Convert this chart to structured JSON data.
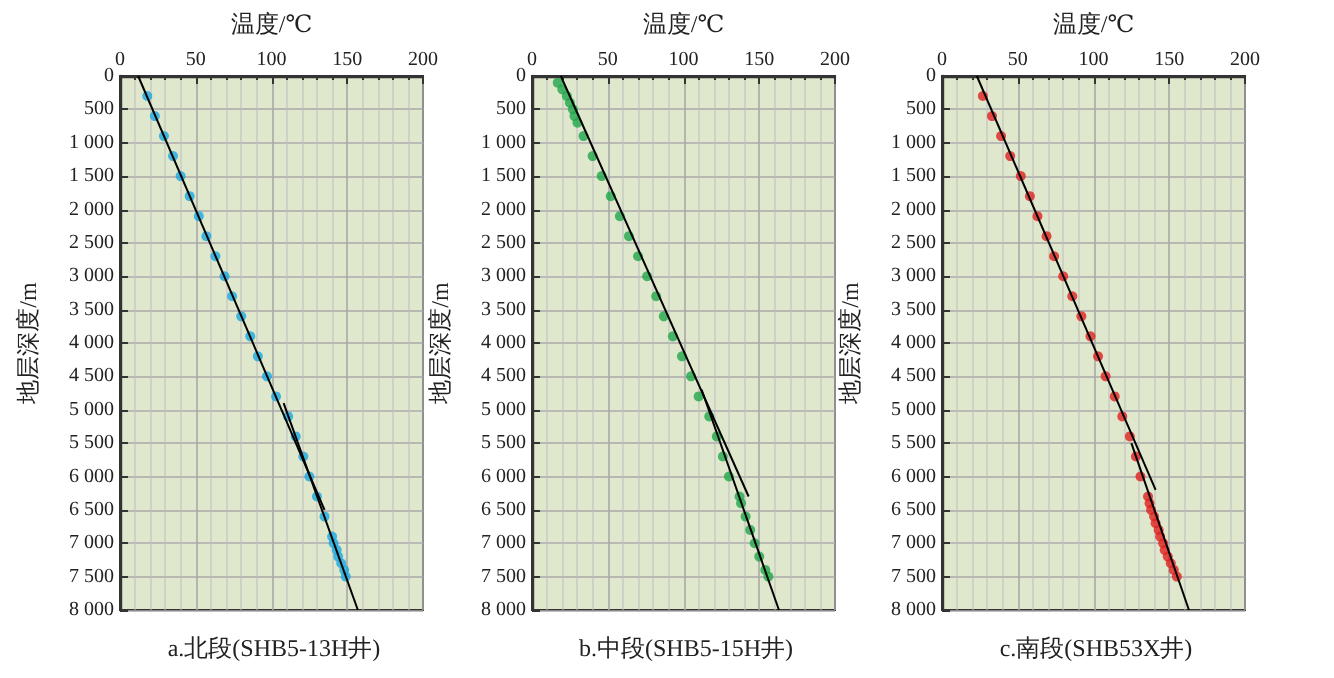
{
  "chart_data": [
    {
      "type": "scatter",
      "title": "a.北段(SHB5-13H井)",
      "xlabel": "温度/℃",
      "ylabel": "地层深度/m",
      "xlim": [
        0,
        200
      ],
      "xticks": [
        0,
        50,
        100,
        150,
        200
      ],
      "ylim": [
        8000,
        0
      ],
      "yticks": [
        {
          "value": 0,
          "label": "0"
        },
        {
          "value": 500,
          "label": "500"
        },
        {
          "value": 1000,
          "label": "1 000"
        },
        {
          "value": 1500,
          "label": "1 500"
        },
        {
          "value": 2000,
          "label": "2 000"
        },
        {
          "value": 2500,
          "label": "2 500"
        },
        {
          "value": 3000,
          "label": "3 000"
        },
        {
          "value": 3500,
          "label": "3 500"
        },
        {
          "value": 4000,
          "label": "4 000"
        },
        {
          "value": 4500,
          "label": "4 500"
        },
        {
          "value": 5000,
          "label": "5 000"
        },
        {
          "value": 5500,
          "label": "5 500"
        },
        {
          "value": 6000,
          "label": "6 000"
        },
        {
          "value": 6500,
          "label": "6 500"
        },
        {
          "value": 7000,
          "label": "7 000"
        },
        {
          "value": 7500,
          "label": "7 500"
        },
        {
          "value": 8000,
          "label": "8 000"
        }
      ],
      "grid": true,
      "series": [
        {
          "color": "#1aa7e0",
          "marker": "circle",
          "x": [
            18,
            23,
            29,
            35,
            40,
            46,
            52,
            57,
            63,
            69,
            74,
            80,
            86,
            91,
            97,
            103,
            111,
            116,
            121,
            125,
            130,
            135,
            140,
            141,
            143,
            144,
            146,
            148,
            149
          ],
          "values": [
            300,
            600,
            900,
            1200,
            1500,
            1800,
            2100,
            2400,
            2700,
            3000,
            3300,
            3600,
            3900,
            4200,
            4500,
            4800,
            5100,
            5400,
            5700,
            6000,
            6300,
            6600,
            6900,
            7000,
            7100,
            7200,
            7300,
            7400,
            7500
          ]
        },
        {
          "type": "line",
          "color": "#000000",
          "marker": "none",
          "x": [
            12,
            135
          ],
          "values": [
            0,
            6500
          ]
        },
        {
          "type": "line",
          "color": "#000000",
          "marker": "none",
          "x": [
            108,
            157
          ],
          "values": [
            4900,
            8000
          ]
        }
      ]
    },
    {
      "type": "scatter",
      "title": "b.中段(SHB5-15H井)",
      "xlabel": "温度/℃",
      "ylabel": "地层深度/m",
      "xlim": [
        0,
        200
      ],
      "xticks": [
        0,
        50,
        100,
        150,
        200
      ],
      "ylim": [
        8000,
        0
      ],
      "yticks": [
        {
          "value": 0,
          "label": "0"
        },
        {
          "value": 500,
          "label": "500"
        },
        {
          "value": 1000,
          "label": "1 000"
        },
        {
          "value": 1500,
          "label": "1 500"
        },
        {
          "value": 2000,
          "label": "2 000"
        },
        {
          "value": 2500,
          "label": "2 500"
        },
        {
          "value": 3000,
          "label": "3 000"
        },
        {
          "value": 3500,
          "label": "3 500"
        },
        {
          "value": 4000,
          "label": "4 000"
        },
        {
          "value": 4500,
          "label": "4 500"
        },
        {
          "value": 5000,
          "label": "5 000"
        },
        {
          "value": 5500,
          "label": "5 500"
        },
        {
          "value": 6000,
          "label": "6 000"
        },
        {
          "value": 6500,
          "label": "6 500"
        },
        {
          "value": 7000,
          "label": "7 000"
        },
        {
          "value": 7500,
          "label": "7 500"
        },
        {
          "value": 8000,
          "label": "8 000"
        }
      ],
      "grid": true,
      "series": [
        {
          "color": "#1fa64a",
          "marker": "circle",
          "x": [
            17,
            20,
            23,
            25,
            27,
            28,
            30,
            34,
            40,
            46,
            52,
            58,
            64,
            70,
            76,
            82,
            87,
            93,
            99,
            105,
            110,
            117,
            122,
            126,
            130,
            137,
            138,
            141,
            144,
            147,
            150,
            154,
            156
          ],
          "values": [
            100,
            200,
            300,
            400,
            500,
            600,
            700,
            900,
            1200,
            1500,
            1800,
            2100,
            2400,
            2700,
            3000,
            3300,
            3600,
            3900,
            4200,
            4500,
            4800,
            5100,
            5400,
            5700,
            6000,
            6300,
            6400,
            6600,
            6800,
            7000,
            7200,
            7400,
            7500
          ]
        },
        {
          "type": "line",
          "color": "#000000",
          "marker": "none",
          "x": [
            19,
            143
          ],
          "values": [
            0,
            6300
          ]
        },
        {
          "type": "line",
          "color": "#000000",
          "marker": "none",
          "x": [
            112,
            163
          ],
          "values": [
            4700,
            8000
          ]
        }
      ]
    },
    {
      "type": "scatter",
      "title": "c.南段(SHB53X井)",
      "xlabel": "温度/℃",
      "ylabel": "地层深度/m",
      "xlim": [
        0,
        200
      ],
      "xticks": [
        0,
        50,
        100,
        150,
        200
      ],
      "ylim": [
        8000,
        0
      ],
      "yticks": [
        {
          "value": 0,
          "label": "0"
        },
        {
          "value": 500,
          "label": "500"
        },
        {
          "value": 1000,
          "label": "1 000"
        },
        {
          "value": 1500,
          "label": "1 500"
        },
        {
          "value": 2000,
          "label": "2 000"
        },
        {
          "value": 2500,
          "label": "2 500"
        },
        {
          "value": 3000,
          "label": "3 000"
        },
        {
          "value": 3500,
          "label": "3 500"
        },
        {
          "value": 4000,
          "label": "4 000"
        },
        {
          "value": 4500,
          "label": "4 500"
        },
        {
          "value": 5000,
          "label": "5 000"
        },
        {
          "value": 5500,
          "label": "5 500"
        },
        {
          "value": 6000,
          "label": "6 000"
        },
        {
          "value": 6500,
          "label": "6 500"
        },
        {
          "value": 7000,
          "label": "7 000"
        },
        {
          "value": 7500,
          "label": "7 500"
        },
        {
          "value": 8000,
          "label": "8 000"
        }
      ],
      "grid": true,
      "series": [
        {
          "color": "#e0201f",
          "marker": "circle",
          "x": [
            27,
            33,
            39,
            45,
            52,
            58,
            63,
            69,
            74,
            80,
            86,
            92,
            98,
            103,
            108,
            114,
            119,
            124,
            128,
            131,
            136,
            137,
            138,
            140,
            141,
            143,
            144,
            146,
            147,
            149,
            151,
            153,
            155
          ],
          "values": [
            300,
            600,
            900,
            1200,
            1500,
            1800,
            2100,
            2400,
            2700,
            3000,
            3300,
            3600,
            3900,
            4200,
            4500,
            4800,
            5100,
            5400,
            5700,
            6000,
            6300,
            6400,
            6500,
            6600,
            6700,
            6800,
            6900,
            7000,
            7100,
            7200,
            7300,
            7400,
            7500
          ]
        },
        {
          "type": "line",
          "color": "#000000",
          "marker": "none",
          "x": [
            23,
            141
          ],
          "values": [
            0,
            6200
          ]
        },
        {
          "type": "line",
          "color": "#000000",
          "marker": "none",
          "x": [
            125,
            163
          ],
          "values": [
            5500,
            8000
          ]
        }
      ]
    }
  ]
}
